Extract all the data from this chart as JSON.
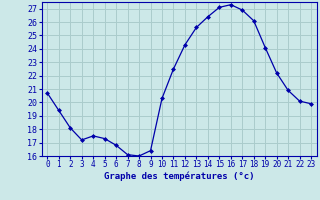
{
  "hours": [
    0,
    1,
    2,
    3,
    4,
    5,
    6,
    7,
    8,
    9,
    10,
    11,
    12,
    13,
    14,
    15,
    16,
    17,
    18,
    19,
    20,
    21,
    22,
    23
  ],
  "temps": [
    20.7,
    19.4,
    18.1,
    17.2,
    17.5,
    17.3,
    16.8,
    16.1,
    16.0,
    16.4,
    20.3,
    22.5,
    24.3,
    25.6,
    26.4,
    27.1,
    27.3,
    26.9,
    26.1,
    24.1,
    22.2,
    20.9,
    20.1,
    19.9
  ],
  "ylim_min": 16,
  "ylim_max": 27.5,
  "yticks": [
    16,
    17,
    18,
    19,
    20,
    21,
    22,
    23,
    24,
    25,
    26,
    27
  ],
  "xlabel": "Graphe des températures (°c)",
  "line_color": "#0000aa",
  "marker_color": "#0000aa",
  "bg_color": "#cce8e8",
  "grid_color": "#aacccc",
  "tick_color": "#0000aa",
  "xlabel_fontsize": 6.5,
  "ytick_fontsize": 6.0,
  "xtick_fontsize": 5.5
}
